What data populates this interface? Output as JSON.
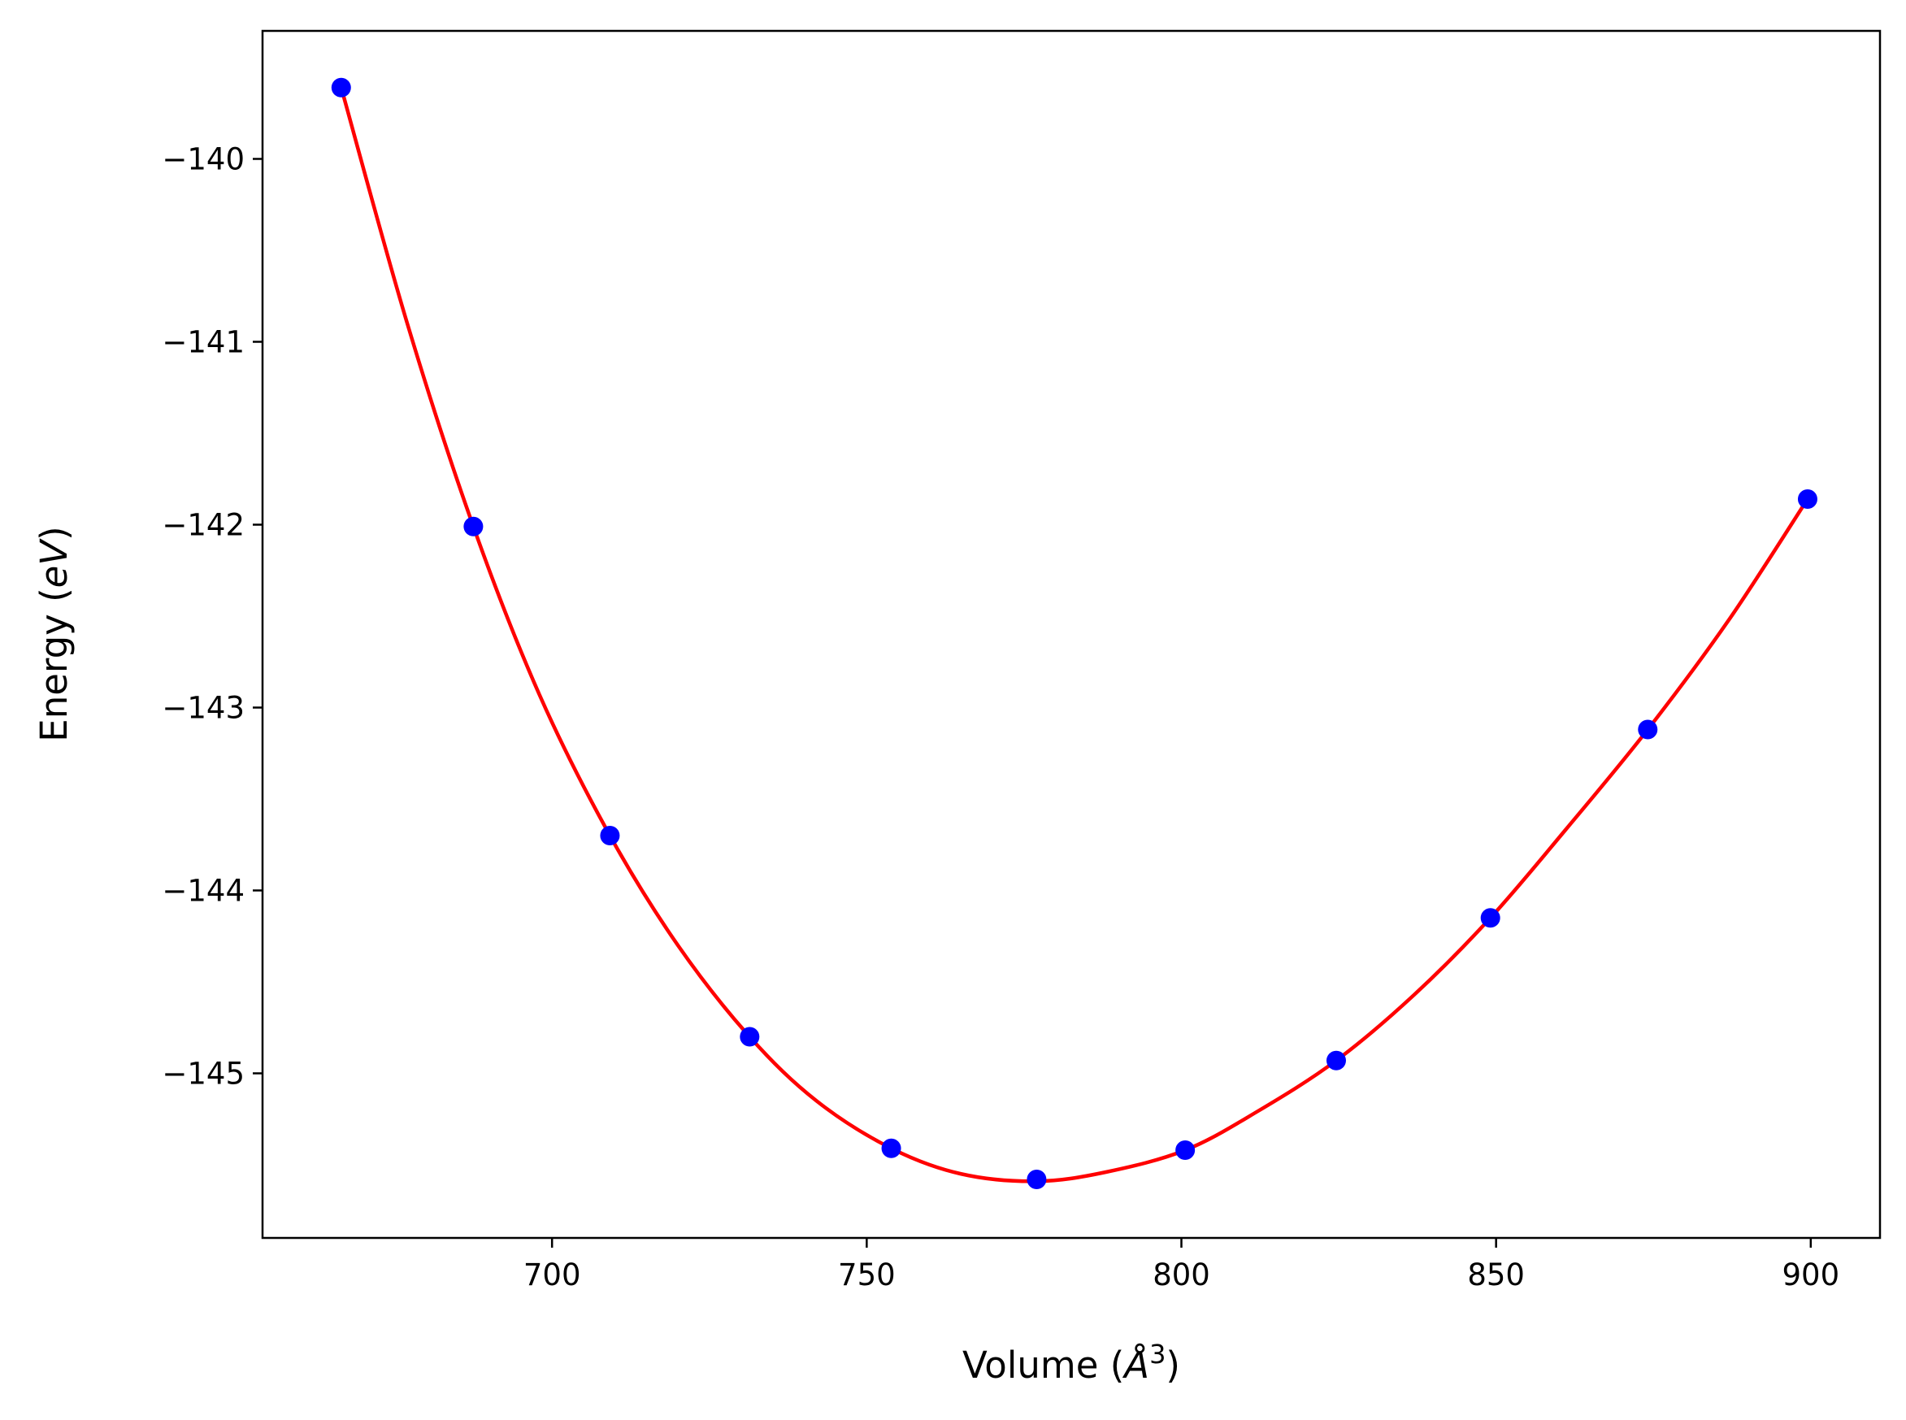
{
  "chart_data": {
    "type": "scatter",
    "title": "",
    "xlabel": "Volume",
    "xlabel_unit_base": "Å",
    "xlabel_unit_sup": "3",
    "ylabel": "Energy",
    "ylabel_unit": "eV",
    "xlim": [
      654,
      911
    ],
    "ylim": [
      -145.9,
      -139.3
    ],
    "x_ticks": [
      700,
      750,
      800,
      850,
      900
    ],
    "x_tick_labels": [
      "700",
      "750",
      "800",
      "850",
      "900"
    ],
    "y_ticks": [
      -140,
      -141,
      -142,
      -143,
      -144,
      -145
    ],
    "y_tick_labels": [
      "−140",
      "−141",
      "−142",
      "−143",
      "−144",
      "−145"
    ],
    "grid": false,
    "series": [
      {
        "kind": "points",
        "color": "#0000ff",
        "x": [
          666.5,
          687.5,
          709.2,
          731.4,
          753.9,
          777.0,
          800.6,
          824.6,
          849.1,
          874.1,
          899.5
        ],
        "y": [
          -139.61,
          -142.01,
          -143.7,
          -144.8,
          -145.41,
          -145.58,
          -145.42,
          -144.93,
          -144.15,
          -143.12,
          -141.86
        ]
      },
      {
        "kind": "fit-curve",
        "color": "#ff0000",
        "x": [
          666.5,
          677,
          687.5,
          698,
          709.2,
          720,
          731.4,
          742,
          753.9,
          765,
          777.0,
          788,
          800.6,
          812,
          824.6,
          837,
          849.1,
          861,
          874.1,
          887,
          899.5
        ],
        "y": [
          -139.61,
          -140.9,
          -142.01,
          -142.93,
          -143.7,
          -144.3,
          -144.8,
          -145.15,
          -145.41,
          -145.55,
          -145.59,
          -145.54,
          -145.42,
          -145.21,
          -144.93,
          -144.57,
          -144.15,
          -143.67,
          -143.12,
          -142.52,
          -141.86
        ]
      }
    ]
  }
}
